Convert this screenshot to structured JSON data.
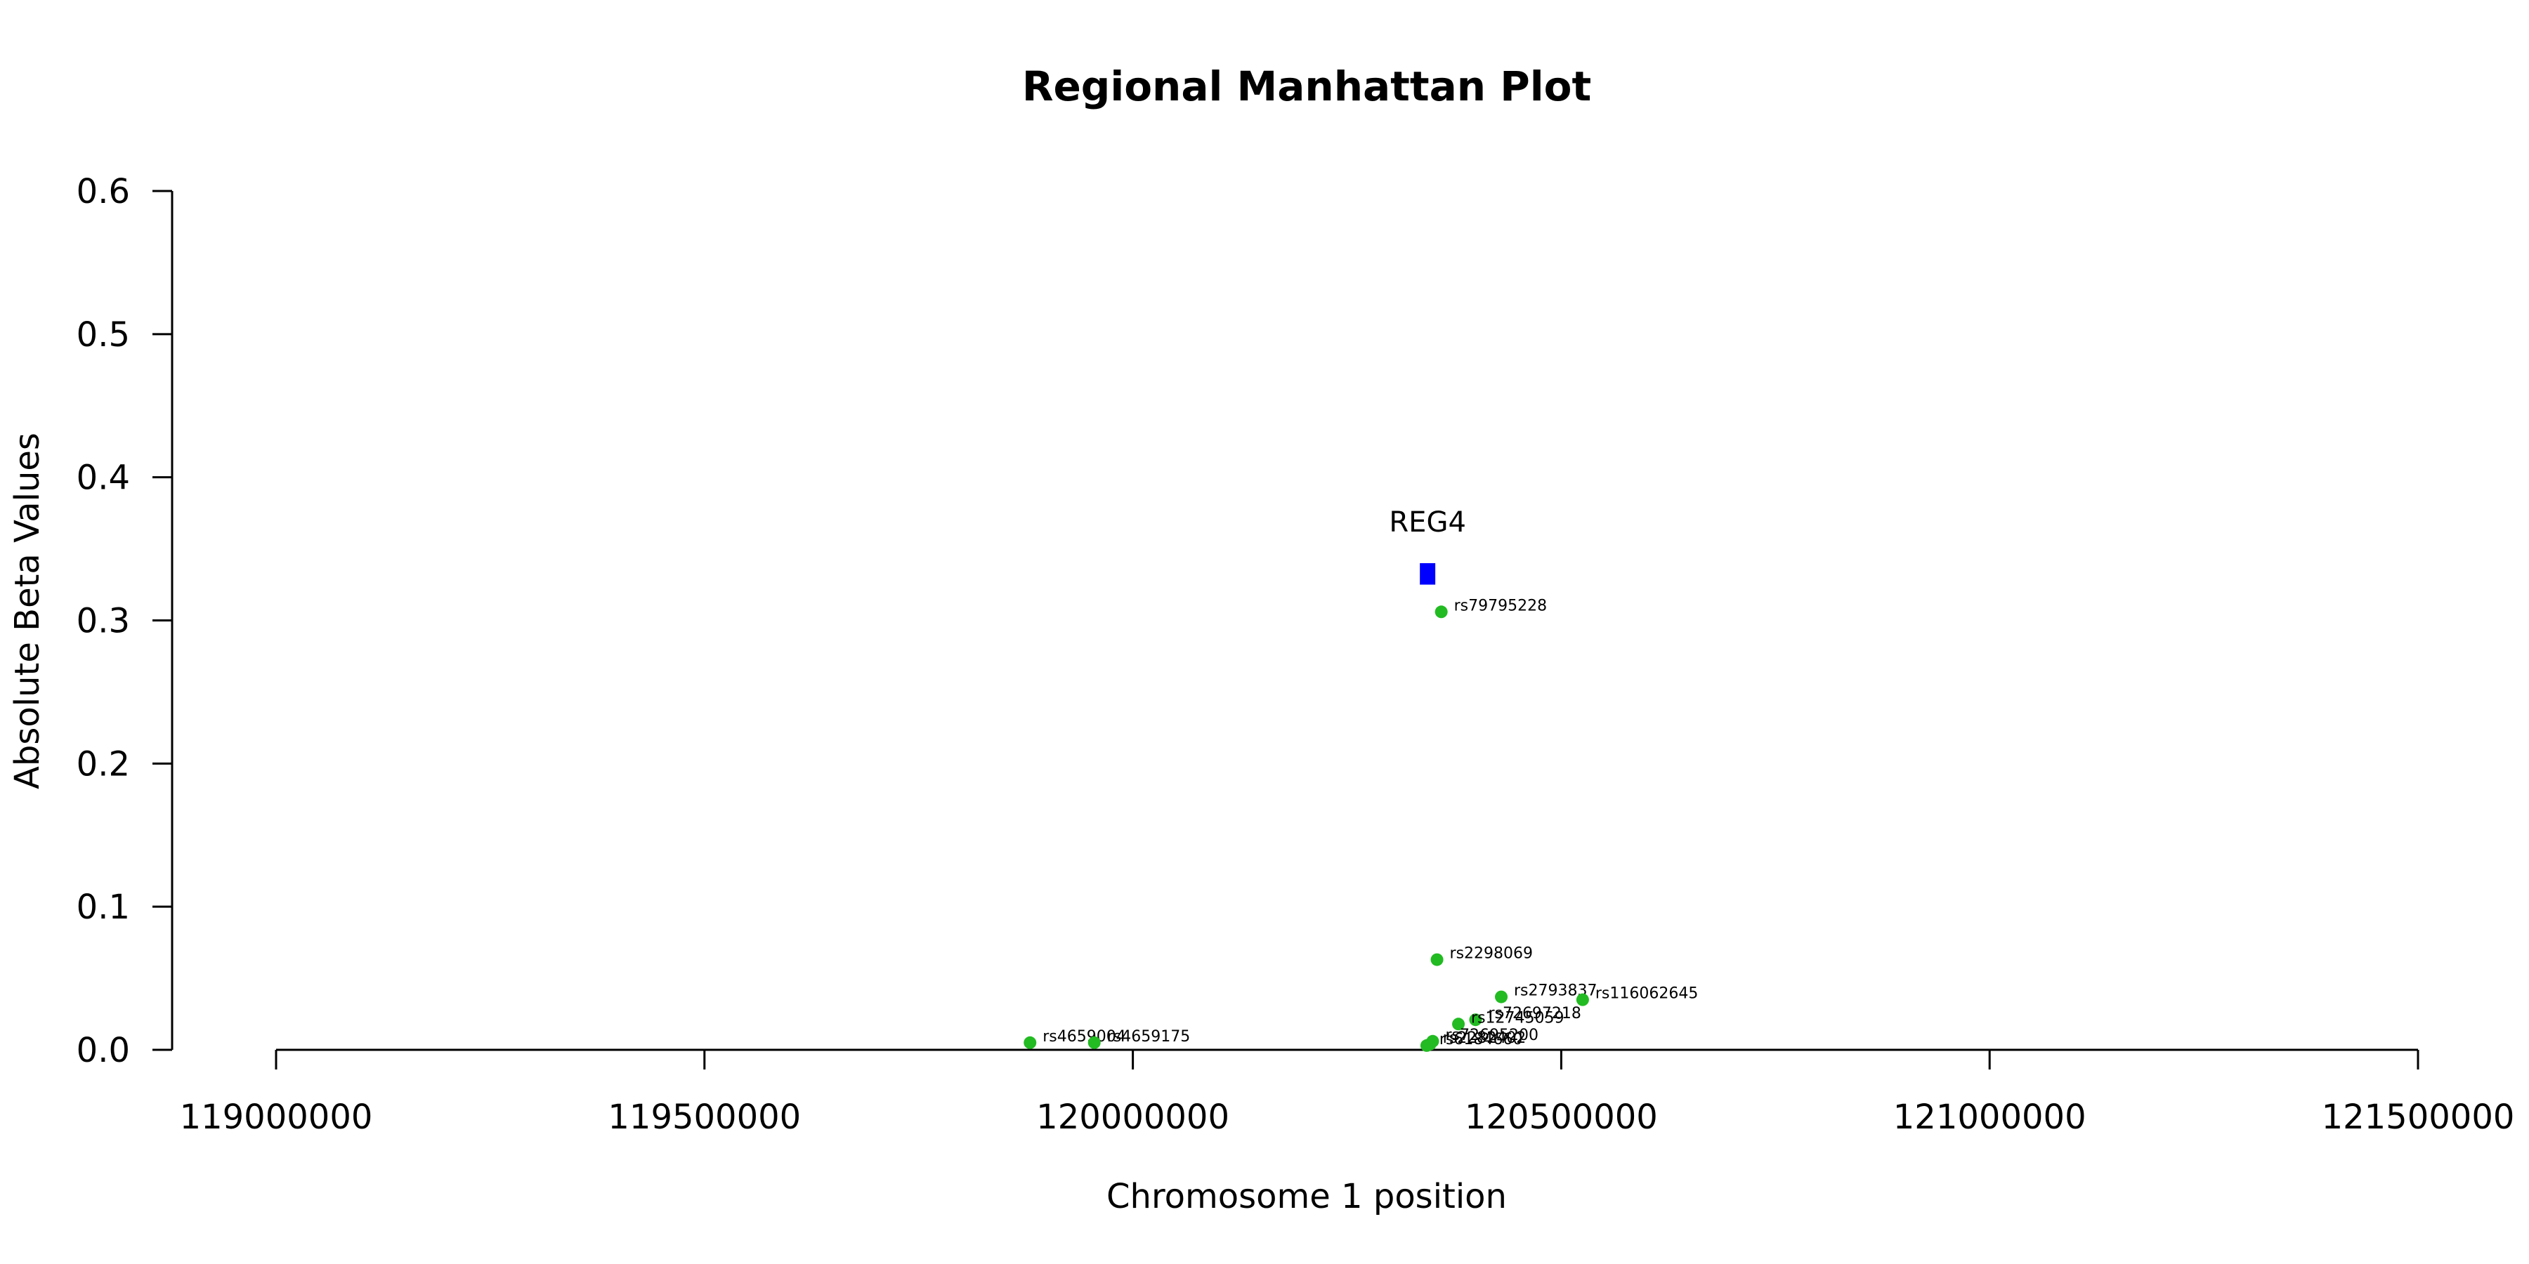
{
  "chart_data": {
    "type": "scatter",
    "title": "Regional Manhattan Plot",
    "xlabel": "Chromosome 1 position",
    "ylabel": "Absolute Beta Values",
    "xlim": [
      119000000,
      121500000
    ],
    "ylim": [
      0,
      0.6
    ],
    "x_ticks": [
      119000000,
      119500000,
      120000000,
      120500000,
      121000000,
      121500000
    ],
    "x_tick_labels": [
      "119000000",
      "119500000",
      "120000000",
      "120500000",
      "121000000",
      "121500000"
    ],
    "y_ticks": [
      0,
      0.1,
      0.2,
      0.3,
      0.4,
      0.5,
      0.6
    ],
    "y_tick_labels": [
      "0.0",
      "0.1",
      "0.2",
      "0.3",
      "0.4",
      "0.5",
      "0.6"
    ],
    "grid": false,
    "gene": {
      "label": "REG4",
      "start": 120335000,
      "end": 120353000,
      "y_bottom": 0.325,
      "y_top": 0.34,
      "color": "#0000ff"
    },
    "point_color": "#22bb22",
    "points": [
      {
        "label": "rs79795228",
        "x": 120360000,
        "y": 0.306
      },
      {
        "label": "rs2298069",
        "x": 120355000,
        "y": 0.063
      },
      {
        "label": "rs2793837",
        "x": 120430000,
        "y": 0.037
      },
      {
        "label": "rs116062645",
        "x": 120525000,
        "y": 0.035
      },
      {
        "label": "rs72697218",
        "x": 120400000,
        "y": 0.021
      },
      {
        "label": "rs12745059",
        "x": 120380000,
        "y": 0.018
      },
      {
        "label": "rs72695200",
        "x": 120350000,
        "y": 0.006
      },
      {
        "label": "rs2282402",
        "x": 120347000,
        "y": 0.004
      },
      {
        "label": "rs6184660",
        "x": 120343000,
        "y": 0.003
      },
      {
        "label": "rs4659004",
        "x": 119880000,
        "y": 0.005
      },
      {
        "label": "rs4659175",
        "x": 119955000,
        "y": 0.005
      }
    ]
  }
}
